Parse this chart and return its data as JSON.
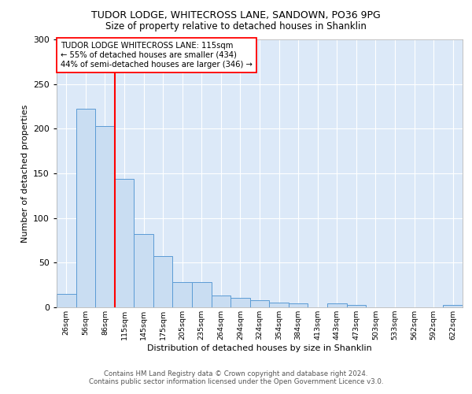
{
  "title1": "TUDOR LODGE, WHITECROSS LANE, SANDOWN, PO36 9PG",
  "title2": "Size of property relative to detached houses in Shanklin",
  "xlabel": "Distribution of detached houses by size in Shanklin",
  "ylabel": "Number of detached properties",
  "categories": [
    "26sqm",
    "56sqm",
    "86sqm",
    "115sqm",
    "145sqm",
    "175sqm",
    "205sqm",
    "235sqm",
    "264sqm",
    "294sqm",
    "324sqm",
    "354sqm",
    "384sqm",
    "413sqm",
    "443sqm",
    "473sqm",
    "503sqm",
    "533sqm",
    "562sqm",
    "592sqm",
    "622sqm"
  ],
  "values": [
    15,
    222,
    203,
    144,
    82,
    57,
    28,
    28,
    13,
    11,
    8,
    5,
    4,
    0,
    4,
    3,
    0,
    0,
    0,
    0,
    3
  ],
  "bar_color": "#c9ddf2",
  "bar_edge_color": "#5b9bd5",
  "vline_color": "red",
  "vline_index": 2.5,
  "annotation_text": "TUDOR LODGE WHITECROSS LANE: 115sqm\n← 55% of detached houses are smaller (434)\n44% of semi-detached houses are larger (346) →",
  "annotation_box_facecolor": "white",
  "annotation_box_edgecolor": "red",
  "ylim": [
    0,
    300
  ],
  "yticks": [
    0,
    50,
    100,
    150,
    200,
    250,
    300
  ],
  "footer1": "Contains HM Land Registry data © Crown copyright and database right 2024.",
  "footer2": "Contains public sector information licensed under the Open Government Licence v3.0.",
  "grid_color": "white",
  "plot_bg_color": "#dce9f8",
  "fig_bg_color": "white"
}
